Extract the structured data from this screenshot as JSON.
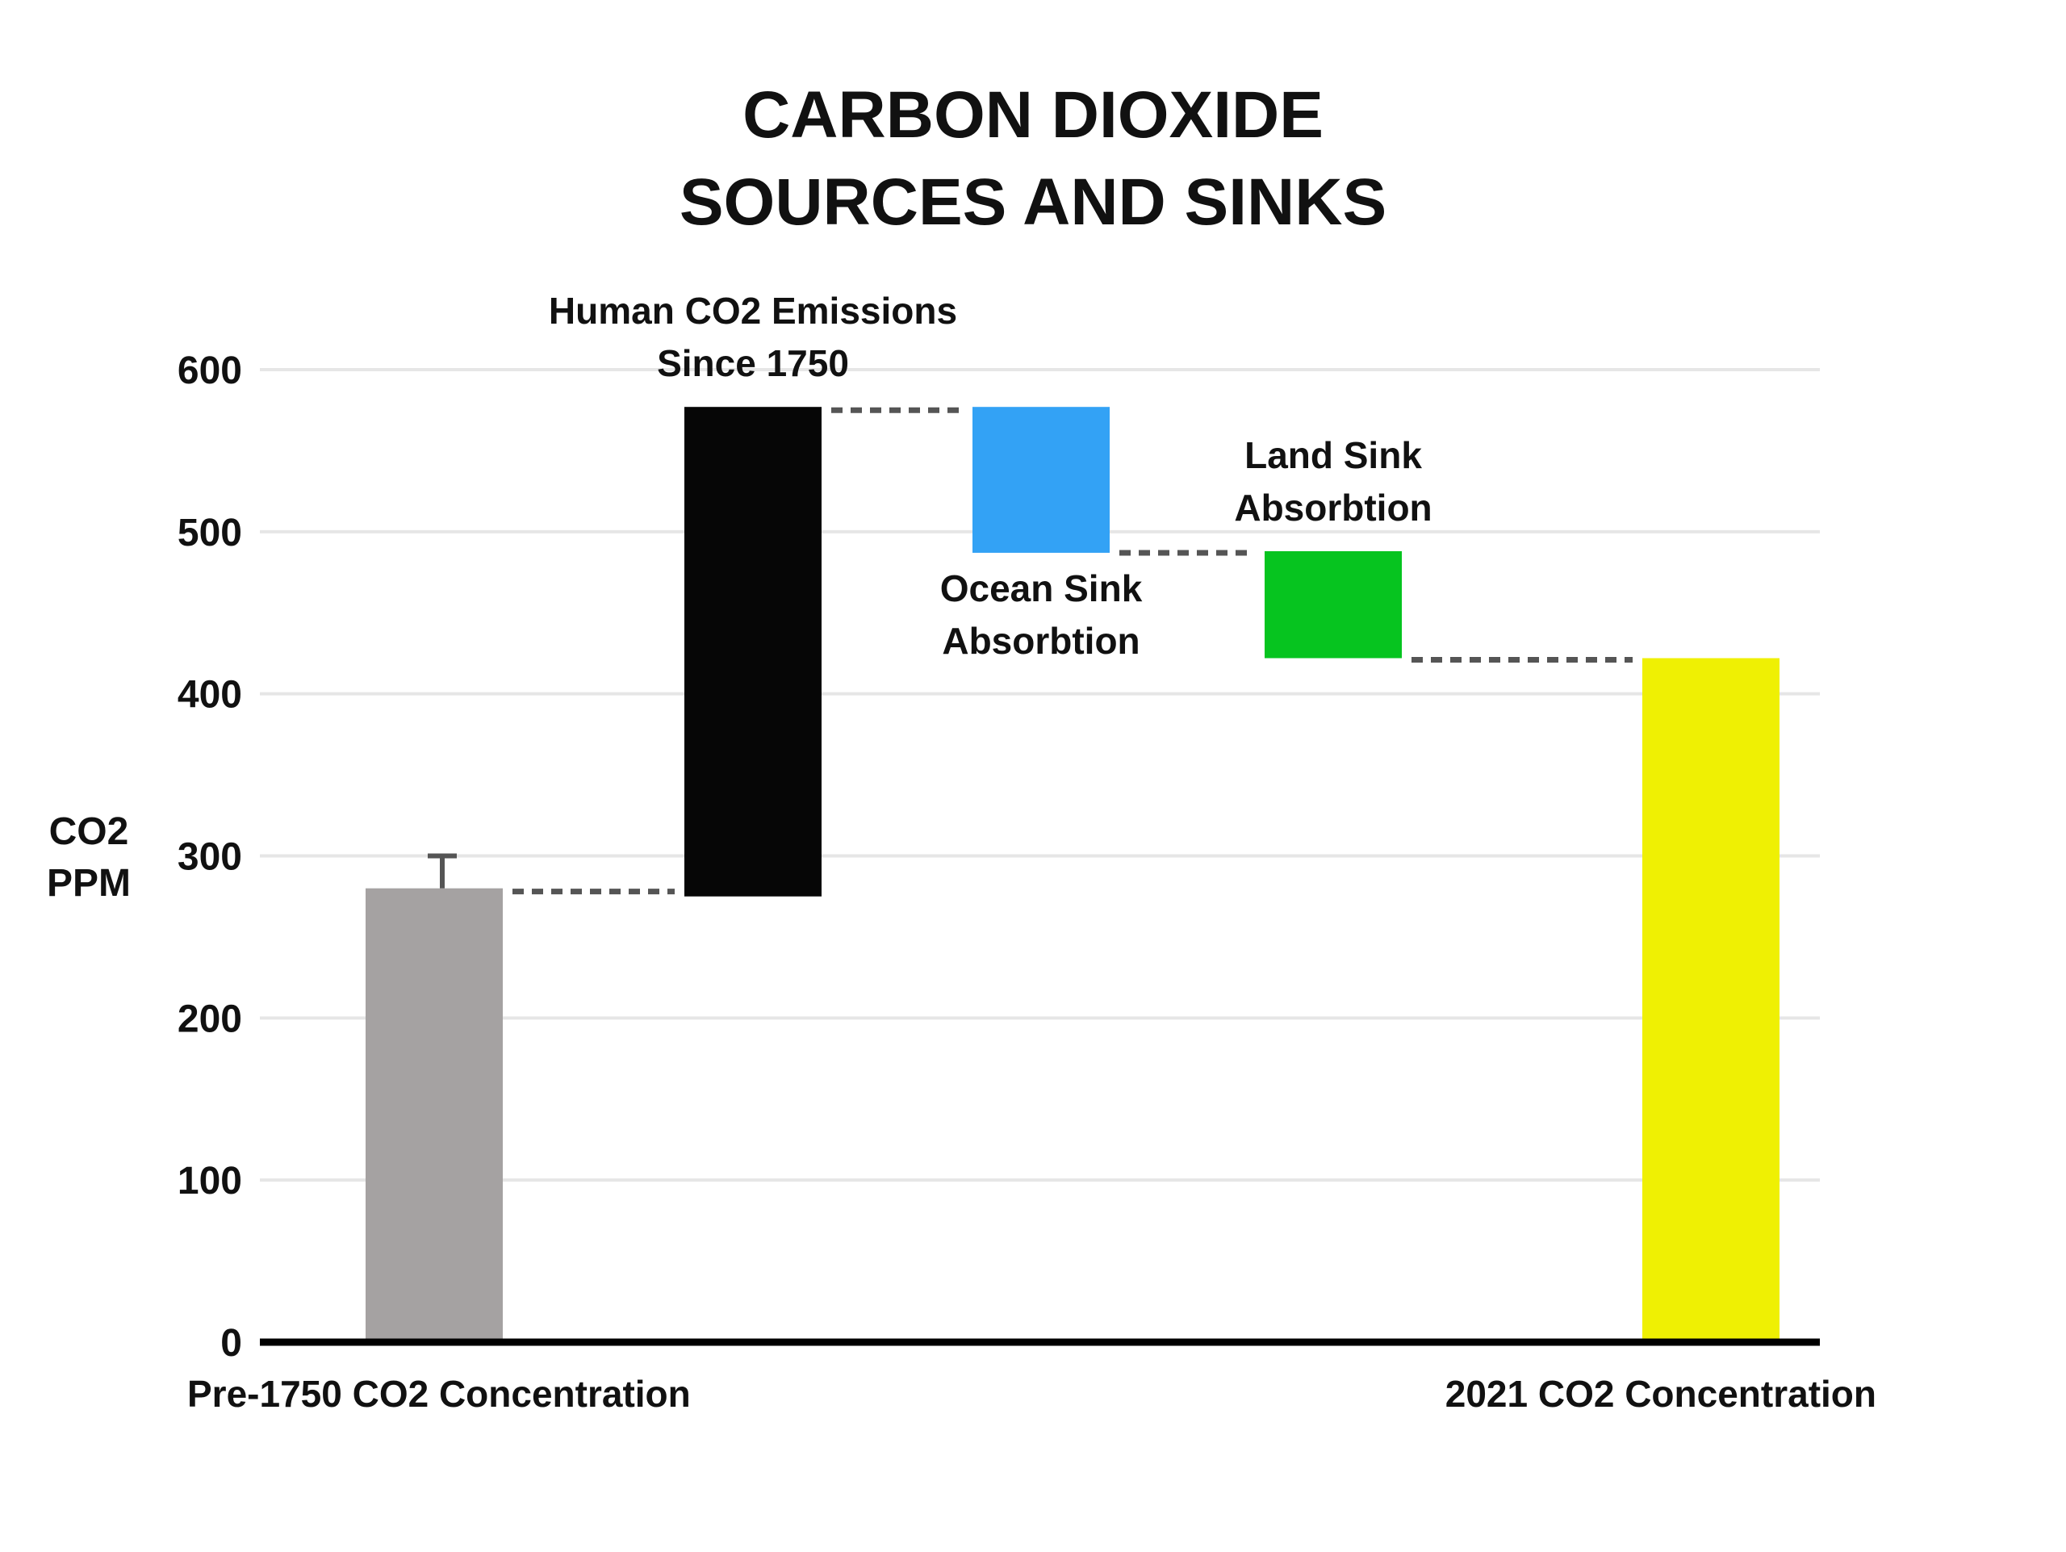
{
  "chart_data": {
    "type": "bar",
    "subtype": "waterfall",
    "title_lines": [
      "CARBON DIOXIDE",
      "SOURCES AND SINKS"
    ],
    "ylabel_lines": [
      "CO2",
      "PPM"
    ],
    "ylim": [
      0,
      600
    ],
    "yticks": [
      0,
      100,
      200,
      300,
      400,
      500,
      600
    ],
    "grid": true,
    "bars": [
      {
        "name": "pre-1750",
        "base": 0,
        "top": 280,
        "color": "#a5a2a2",
        "error_top": 300,
        "label_lines": [
          "Pre-1750 CO2 Concentration"
        ],
        "label_position": "below-axis"
      },
      {
        "name": "human-emissions",
        "base": 275,
        "top": 577,
        "color": "#060606",
        "label_lines": [
          "Human CO2 Emissions",
          "Since 1750"
        ],
        "label_position": "above"
      },
      {
        "name": "ocean-sink",
        "base": 487,
        "top": 577,
        "color": "#33a2f5",
        "label_lines": [
          "Ocean Sink",
          "Absorbtion"
        ],
        "label_position": "below"
      },
      {
        "name": "land-sink",
        "base": 422,
        "top": 488,
        "color": "#06c41f",
        "label_lines": [
          "Land Sink",
          "Absorbtion"
        ],
        "label_position": "above"
      },
      {
        "name": "2021",
        "base": 0,
        "top": 422,
        "color": "#eff003",
        "label_lines": [
          "2021 CO2 Concentration"
        ],
        "label_position": "below-axis"
      }
    ],
    "connectors": [
      {
        "from": 0,
        "to": 1,
        "y": 278
      },
      {
        "from": 1,
        "to": 2,
        "y": 575
      },
      {
        "from": 2,
        "to": 3,
        "y": 487
      },
      {
        "from": 3,
        "to": 4,
        "y": 421
      }
    ]
  }
}
